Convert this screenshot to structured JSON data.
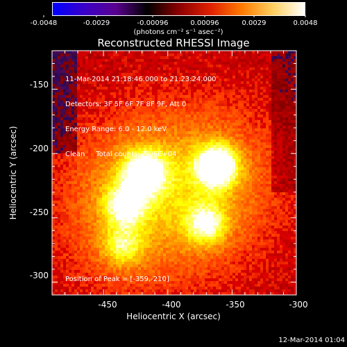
{
  "colorbar": {
    "tick_labels": [
      "-0.0048",
      "-0.0029",
      "-0.00096",
      "0.00096",
      "0.0029",
      "0.0048"
    ],
    "unit_label": "(photons cm⁻² s⁻¹ asec⁻²)",
    "gradient_colors": [
      "#0000ff",
      "#3a00c8",
      "#5a0090",
      "#000000",
      "#8b0000",
      "#e02000",
      "#ff7a00",
      "#ffd060",
      "#ffffff"
    ]
  },
  "image": {
    "title": "Reconstructed RHESSI Image",
    "info_lines": [
      "11-Mar-2014 21:18:46.000 to 21:23:24.000",
      "Detectors: 3F 5F 6F 7F 8F 9F, Att 0",
      "Energy Range: 6.0 - 12.0 keV",
      "Clean     Total counts: 3.06E+04"
    ],
    "peak_label": "Position of Peak = [-359,-210]",
    "xlabel": "Heliocentric X (arcsec)",
    "ylabel": "Heliocentric Y (arcsec)",
    "x_ticks": [
      "-450",
      "-400",
      "-350",
      "-300"
    ],
    "y_ticks": [
      "-150",
      "-200",
      "-250",
      "-300"
    ],
    "x_range": [
      -490,
      -300
    ],
    "y_range": [
      -310,
      -120
    ],
    "hotspots": [
      {
        "x": -362,
        "y": -210,
        "intensity": 1.0
      },
      {
        "x": -418,
        "y": -215,
        "intensity": 0.9
      },
      {
        "x": -433,
        "y": -240,
        "intensity": 0.65
      },
      {
        "x": -370,
        "y": -255,
        "intensity": 0.6
      },
      {
        "x": -435,
        "y": -272,
        "intensity": 0.45
      }
    ]
  },
  "footer": {
    "timestamp": "12-Mar-2014 01:04"
  }
}
